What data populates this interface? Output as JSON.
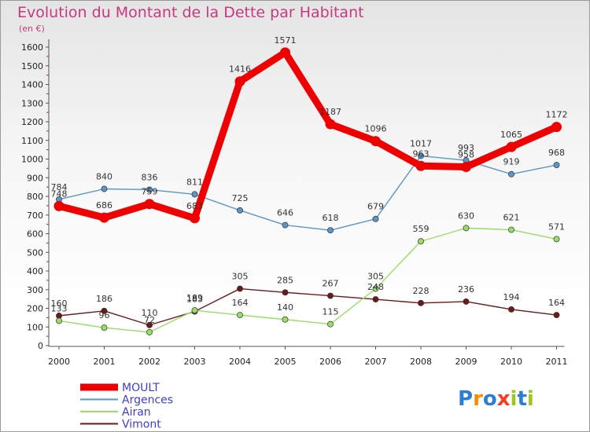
{
  "title": "Evolution du Montant de la Dette par Habitant",
  "unit_label": "(en €)",
  "logo_text": "Proxiti",
  "chart_data": {
    "type": "line",
    "title": "Evolution du Montant de la Dette par Habitant",
    "ylabel": "(en €)",
    "xlabel": "",
    "ylim": [
      0,
      1600
    ],
    "yticks": [
      0,
      100,
      200,
      300,
      400,
      500,
      600,
      700,
      800,
      900,
      1000,
      1100,
      1200,
      1300,
      1400,
      1500,
      1600
    ],
    "x": [
      "2000",
      "2001",
      "2002",
      "2003",
      "2004",
      "2005",
      "2006",
      "2007",
      "2008",
      "2009",
      "2010",
      "2011"
    ],
    "grid": false,
    "legend_position": "bottom-left",
    "series": [
      {
        "name": "MOULT",
        "color": "#ee0000",
        "values": [
          748,
          686,
          759,
          683,
          1416,
          1571,
          1187,
          1096,
          963,
          958,
          1065,
          1172
        ]
      },
      {
        "name": "Argences",
        "color": "#5b96c8",
        "values": [
          784,
          840,
          836,
          811,
          725,
          646,
          618,
          679,
          1017,
          993,
          919,
          968
        ]
      },
      {
        "name": "Airan",
        "color": "#99dd66",
        "values": [
          133,
          96,
          72,
          189,
          164,
          140,
          115,
          305,
          559,
          630,
          621,
          571
        ]
      },
      {
        "name": "Vimont",
        "color": "#6b1a1a",
        "values": [
          160,
          186,
          110,
          183,
          305,
          285,
          267,
          248,
          228,
          236,
          194,
          164
        ]
      }
    ]
  }
}
